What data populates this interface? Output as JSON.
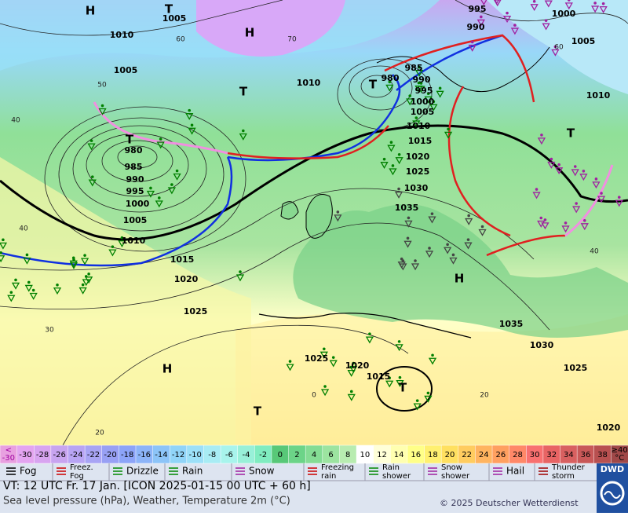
{
  "map": {
    "labels": [
      "H",
      "T",
      "1005",
      "1010",
      "H",
      "1005",
      "T",
      "1010",
      "T",
      "980",
      "985",
      "990",
      "995",
      "1000",
      "1005",
      "1010",
      "1015",
      "1020",
      "1025",
      "H",
      "T",
      "T",
      "980",
      "985",
      "990",
      "995",
      "1000",
      "1005",
      "1010",
      "1015",
      "1020",
      "1025",
      "1030",
      "1035",
      "H",
      "1035",
      "1030",
      "1025",
      "1020",
      "T",
      "995",
      "990",
      "1000",
      "1005",
      "1010",
      "1025",
      "1020",
      "1015",
      "T"
    ],
    "isotherm_labels": [
      "60",
      "70",
      "50",
      "40",
      "40",
      "30",
      "20",
      "0",
      "20",
      "40",
      "60"
    ]
  },
  "scale": {
    "low": [
      "<",
      "-30"
    ],
    "steps": [
      "-30",
      "-28",
      "-26",
      "-24",
      "-22",
      "-20",
      "-18",
      "-16",
      "-14",
      "-12",
      "-10",
      "-8",
      "-6",
      "-4",
      "-2",
      "0",
      "2",
      "4",
      "6",
      "8",
      "10",
      "12",
      "14",
      "16",
      "18",
      "20",
      "22",
      "24",
      "26",
      "28",
      "30",
      "32",
      "34",
      "36",
      "38"
    ],
    "high": [
      "≥40",
      "°C"
    ],
    "colors": [
      "#e8a0e0",
      "#e4a4f0",
      "#d8a4f0",
      "#c8a4f0",
      "#b8a4f4",
      "#a8a4f4",
      "#98a0f4",
      "#8ca4f8",
      "#8cb4f8",
      "#8cc4f8",
      "#90d4f8",
      "#9ce0f8",
      "#a8ecf4",
      "#a8f4ec",
      "#98f0d8",
      "#80ecc0",
      "#58c878",
      "#6cd488",
      "#84dc94",
      "#9ce4a0",
      "#b8ecb0",
      "#ffffff",
      "#ffffd8",
      "#ffffb0",
      "#ffff88",
      "#fff070",
      "#ffe060",
      "#ffcc60",
      "#ffb460",
      "#ffa060",
      "#ff8868",
      "#f87070",
      "#e86464",
      "#d86060",
      "#c85858",
      "#b85050",
      "#a04848"
    ]
  },
  "legend": [
    [
      "Fog"
    ],
    [
      "Freez.",
      "Fog"
    ],
    [
      "Drizzle"
    ],
    [
      "Rain"
    ],
    [
      "Snow"
    ],
    [
      "Freezing",
      "rain"
    ],
    [
      "Rain",
      "shower"
    ],
    [
      "Snow",
      "shower"
    ],
    [
      "Hail"
    ],
    [
      "Thunder",
      "storm"
    ]
  ],
  "footer": {
    "valid_time": "VT: 12 UTC Fr.  17 Jan. [ICON 2025-01-15  00 UTC + 60 h]",
    "description": "Sea level pressure (hPa), Weather, Temperature 2m (°C)",
    "copyright": "© 2025 Deutscher Wetterdienst",
    "logo": "DWD"
  }
}
